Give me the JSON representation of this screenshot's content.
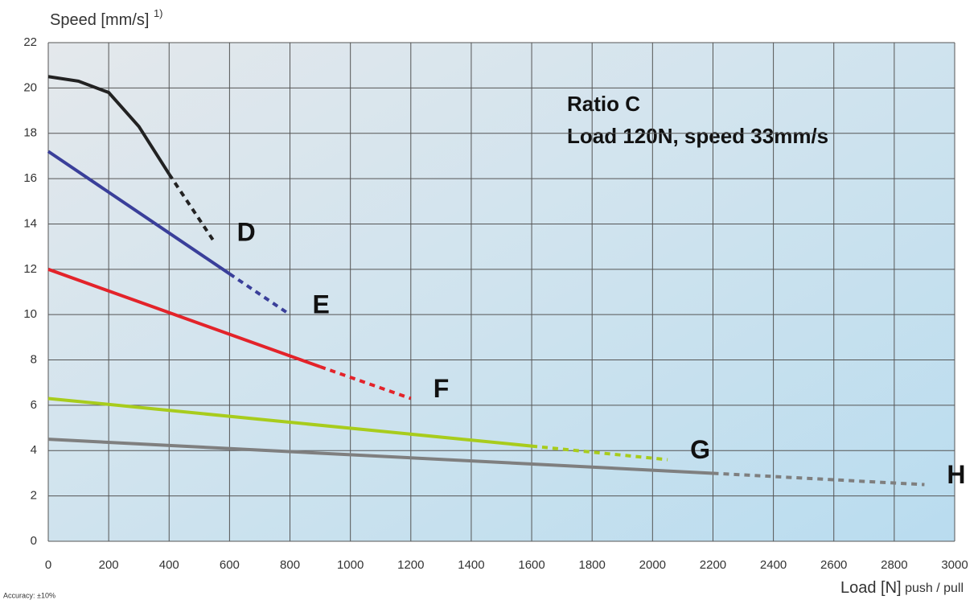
{
  "chart_data": {
    "type": "line",
    "y_label": "Speed [mm/s]",
    "y_label_note": "1)",
    "x_label": "Load [N]",
    "x_label_suffix": "push / pull",
    "annotations": [
      "Ratio C",
      "Load 120N, speed 33mm/s"
    ],
    "footnote": "Accuracy: ±10%",
    "xlim": [
      0,
      3000
    ],
    "xticks": [
      0,
      200,
      400,
      600,
      800,
      1000,
      1200,
      1400,
      1600,
      1800,
      2000,
      2200,
      2400,
      2600,
      2800,
      3000
    ],
    "ylim": [
      0,
      22
    ],
    "yticks": [
      0,
      2,
      4,
      6,
      8,
      10,
      12,
      14,
      16,
      18,
      20,
      22
    ],
    "grid": true,
    "series": [
      {
        "name": "D",
        "color": "#222222",
        "x": [
          0,
          100,
          200,
          300,
          400,
          550
        ],
        "values": [
          20.5,
          20.3,
          19.8,
          18.3,
          16.2,
          13.2
        ],
        "dashed_from": 400
      },
      {
        "name": "E",
        "color": "#3a3f9a",
        "x": [
          0,
          600,
          800
        ],
        "values": [
          17.2,
          11.8,
          10.0
        ],
        "dashed_from": 600
      },
      {
        "name": "F",
        "color": "#e3232a",
        "x": [
          0,
          900,
          1200
        ],
        "values": [
          12.0,
          7.7,
          6.3
        ],
        "dashed_from": 900
      },
      {
        "name": "G",
        "color": "#a8cc1c",
        "x": [
          0,
          1600,
          2050
        ],
        "values": [
          6.3,
          4.2,
          3.6
        ],
        "dashed_from": 1600
      },
      {
        "name": "H",
        "color": "#7f7f7f",
        "x": [
          0,
          2200,
          2900
        ],
        "values": [
          4.5,
          3.0,
          2.5
        ],
        "dashed_from": 2200
      }
    ]
  }
}
